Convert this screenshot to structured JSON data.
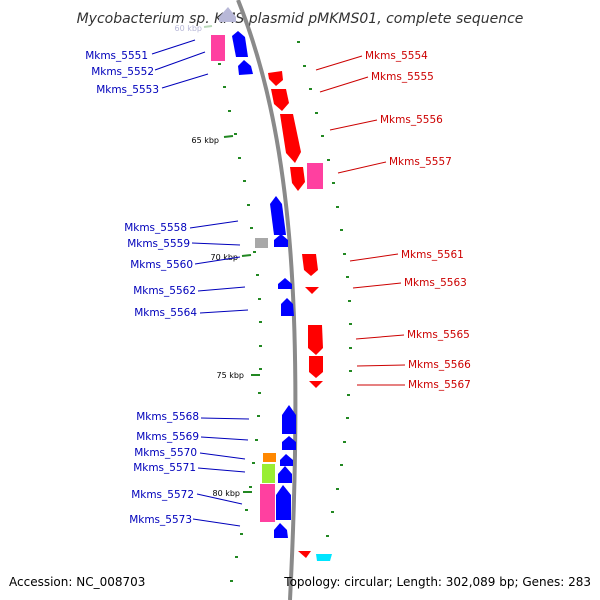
{
  "title": "Mycobacterium sp. KMS plasmid pMKMS01, complete sequence",
  "footer": {
    "accession": "Accession: NC_008703",
    "summary": "Topology: circular; Length: 302,089 bp; Genes: 283"
  },
  "kbp_labels": [
    "60 kbp",
    "65 kbp",
    "70 kbp",
    "75 kbp",
    "80 kbp"
  ],
  "colors": {
    "backbone": "#8a8a8a",
    "forward_strand": "#0000ff",
    "reverse_strand": "#ff0000",
    "forward_label": "#0000bb",
    "reverse_label": "#cc0000",
    "pseudogene": "#ff40a0",
    "rna_grey": "#a8a8a8",
    "orange_feature": "#ff8800",
    "green_feature": "#99ee33",
    "cyan_feature": "#00e5ff",
    "tick": "#228822"
  },
  "genes_left": [
    "Mkms_5551",
    "Mkms_5552",
    "Mkms_5553",
    "Mkms_5558",
    "Mkms_5559",
    "Mkms_5560",
    "Mkms_5562",
    "Mkms_5564",
    "Mkms_5568",
    "Mkms_5569",
    "Mkms_5570",
    "Mkms_5571",
    "Mkms_5572",
    "Mkms_5573"
  ],
  "genes_right": [
    "Mkms_5554",
    "Mkms_5555",
    "Mkms_5556",
    "Mkms_5557",
    "Mkms_5561",
    "Mkms_5563",
    "Mkms_5565",
    "Mkms_5566",
    "Mkms_5567"
  ]
}
